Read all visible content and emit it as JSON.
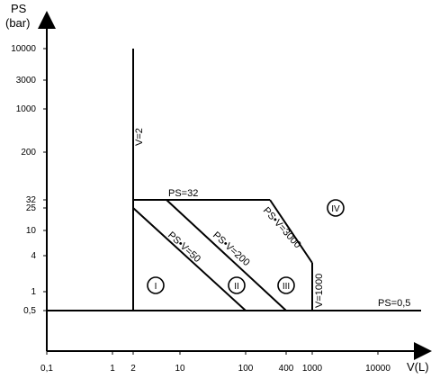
{
  "y_axis": {
    "title": "PS",
    "unit": "(bar)",
    "ticks": [
      "10000",
      "3000",
      "1000",
      "200",
      "32",
      "25",
      "10",
      "4",
      "1",
      "0,5"
    ]
  },
  "x_axis": {
    "title": "V(L)",
    "ticks": [
      "0,1",
      "1",
      "2",
      "10",
      "100",
      "400",
      "1000",
      "10000"
    ]
  },
  "lines": {
    "v2": "V=2",
    "ps32": "PS=32",
    "psv50": "PS•V=50",
    "psv200": "PS•V=200",
    "psv3000": "PS•V=3000",
    "v1000": "V=1000",
    "ps05": "PS=0,5"
  },
  "categories": {
    "c1": "I",
    "c2": "II",
    "c3": "III",
    "c4": "IV"
  }
}
